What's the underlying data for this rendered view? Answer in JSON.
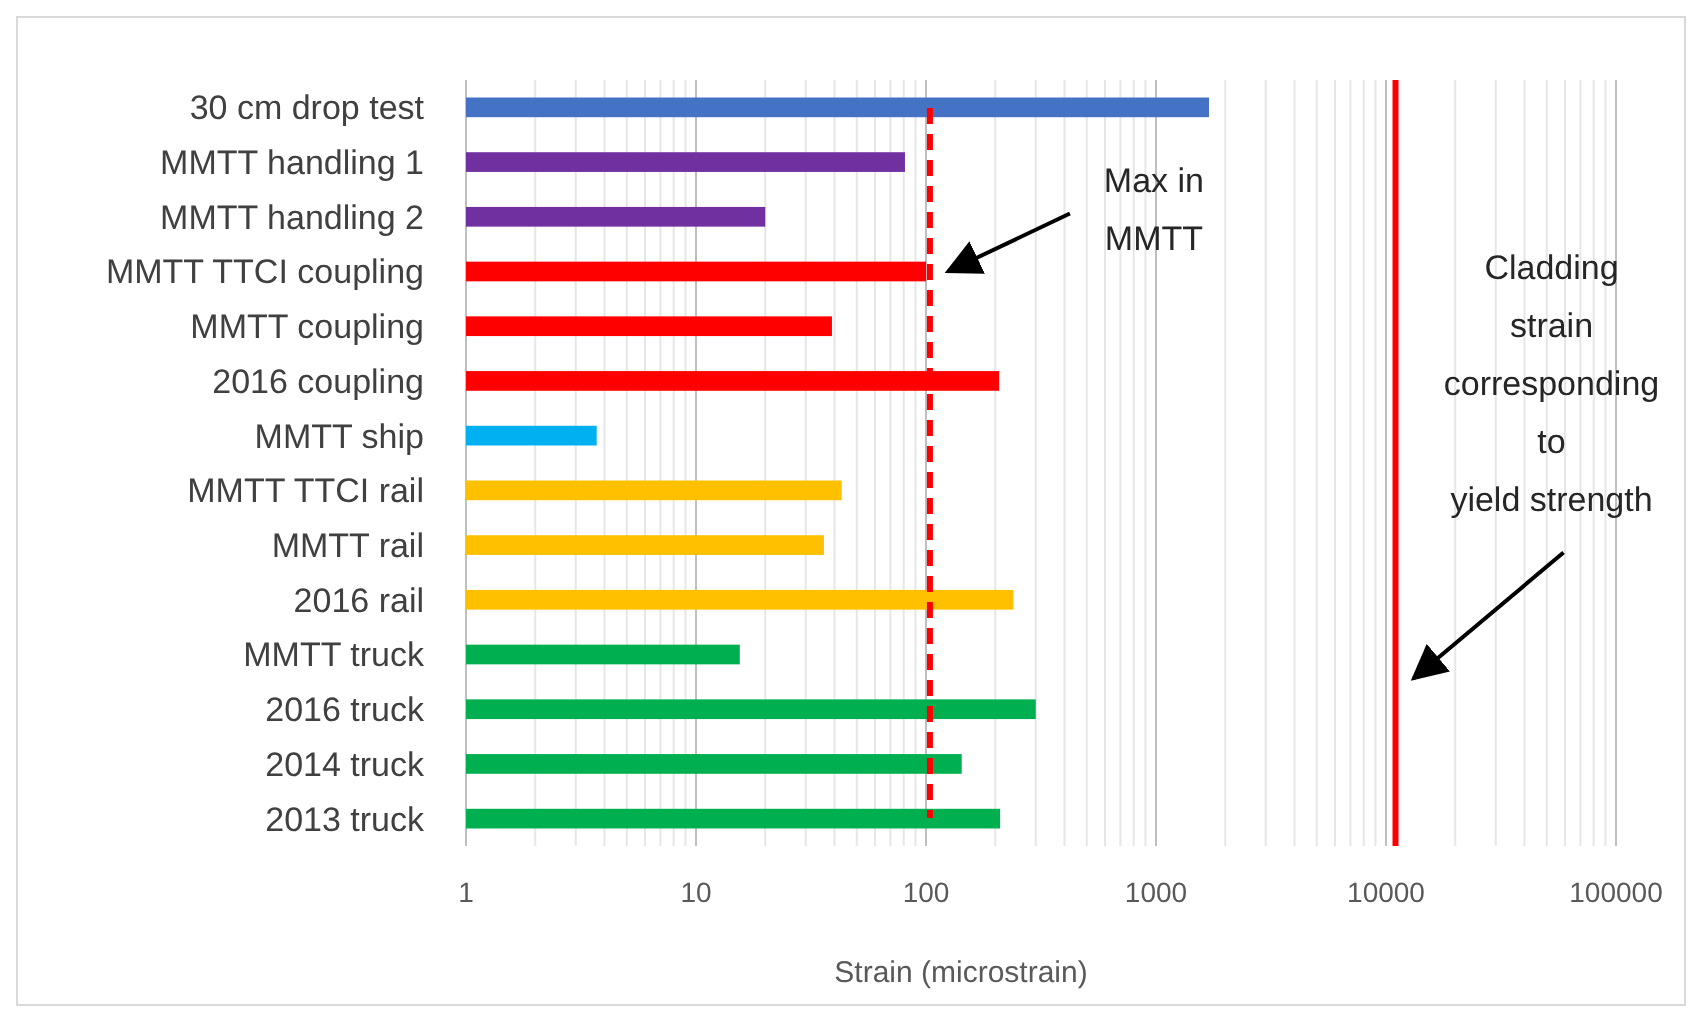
{
  "chart_data": {
    "type": "bar",
    "orientation": "horizontal",
    "log": "x",
    "xlabel": "Strain (microstrain)",
    "categories": [
      "30 cm drop test",
      "MMTT handling 1",
      "MMTT handling 2",
      "MMTT TTCI coupling",
      "MMTT coupling",
      "2016 coupling",
      "MMTT ship",
      "MMTT TTCI rail",
      "MMTT rail",
      "2016 rail",
      "MMTT truck",
      "2016 truck",
      "2014 truck",
      "2013 truck"
    ],
    "values": [
      1700,
      81,
      20,
      100,
      39,
      208,
      3.7,
      43,
      36,
      240,
      15.5,
      300,
      143,
      210
    ],
    "colors": [
      "#4472c4",
      "#7030a0",
      "#7030a0",
      "#ff0000",
      "#ff0000",
      "#ff0000",
      "#00b0f0",
      "#ffc000",
      "#ffc000",
      "#ffc000",
      "#00b050",
      "#00b050",
      "#00b050",
      "#00b050"
    ],
    "xlim": [
      1,
      100000
    ],
    "xticks": [
      1,
      {
        "value": 2,
        "label": null
      },
      {
        "value": 3,
        "label": null
      },
      {
        "value": 4,
        "label": null
      },
      {
        "value": 5,
        "label": null
      },
      {
        "value": 6,
        "label": null
      },
      {
        "value": 7,
        "label": null
      },
      {
        "value": 8,
        "label": null
      },
      {
        "value": 9,
        "label": null
      },
      10,
      {
        "value": 20,
        "label": null
      },
      {
        "value": 30,
        "label": null
      },
      {
        "value": 40,
        "label": null
      },
      {
        "value": 50,
        "label": null
      },
      {
        "value": 60,
        "label": null
      },
      {
        "value": 70,
        "label": null
      },
      {
        "value": 80,
        "label": null
      },
      {
        "value": 90,
        "label": null
      },
      100,
      {
        "value": 200,
        "label": null
      },
      {
        "value": 300,
        "label": null
      },
      {
        "value": 400,
        "label": null
      },
      {
        "value": 500,
        "label": null
      },
      {
        "value": 600,
        "label": null
      },
      {
        "value": 700,
        "label": null
      },
      {
        "value": 800,
        "label": null
      },
      {
        "value": 900,
        "label": null
      },
      1000,
      {
        "value": 2000,
        "label": null
      },
      {
        "value": 3000,
        "label": null
      },
      {
        "value": 4000,
        "label": null
      },
      {
        "value": 5000,
        "label": null
      },
      {
        "value": 6000,
        "label": null
      },
      {
        "value": 7000,
        "label": null
      },
      {
        "value": 8000,
        "label": null
      },
      {
        "value": 9000,
        "label": null
      },
      10000,
      {
        "value": 20000,
        "label": null
      },
      {
        "value": 30000,
        "label": null
      },
      {
        "value": 40000,
        "label": null
      },
      {
        "value": 50000,
        "label": null
      },
      {
        "value": 60000,
        "label": null
      },
      {
        "value": 70000,
        "label": null
      },
      {
        "value": 80000,
        "label": null
      },
      {
        "value": 90000,
        "label": null
      },
      100000
    ],
    "grid": "x",
    "ref_lines": [
      {
        "axis": "x",
        "value": 104,
        "color": "#ff0000",
        "line_style": "dashed"
      },
      {
        "axis": "x",
        "value": 11000,
        "color": "#ff0000",
        "line_style": "solid"
      }
    ],
    "annotations": [
      "Max in MMTT",
      "Cladding strain corresponding to yield strength"
    ]
  }
}
